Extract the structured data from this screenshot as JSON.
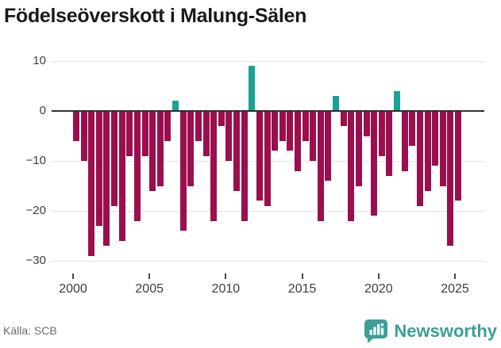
{
  "title": "Födelseöverskott i Malung-Sälen",
  "source": "Källa: SCB",
  "logo": {
    "text": "Newsworthy",
    "icon": "bar-chart-speech-bubble"
  },
  "colors": {
    "negative_bar": "#9b0f4e",
    "positive_bar": "#18a395",
    "gridline": "#e2e2e2",
    "zero_line": "#2e2e2e",
    "title_text": "#1a1a1a",
    "axis_text": "#3d3d3d",
    "source_text": "#6b6b6b",
    "logo_teal": "#3aa097"
  },
  "chart_data": {
    "type": "bar",
    "title": "Födelseöverskott i Malung-Sälen",
    "xlabel": "",
    "ylabel": "",
    "grid": true,
    "legend": false,
    "ylim": [
      -30,
      10
    ],
    "y_ticks": [
      10,
      0,
      -10,
      -20,
      -30
    ],
    "y_tick_labels": [
      "10",
      "0",
      "−10",
      "−20",
      "−30"
    ],
    "x_tick_years": [
      2000,
      2005,
      2010,
      2015,
      2020,
      2025
    ],
    "x_tick_labels": [
      "2000",
      "2005",
      "2010",
      "2015",
      "2020",
      "2025"
    ],
    "periods": [
      "2000 H1",
      "2000 H2",
      "2001 H1",
      "2001 H2",
      "2002 H1",
      "2002 H2",
      "2003 H1",
      "2003 H2",
      "2004 H1",
      "2004 H2",
      "2005 H1",
      "2005 H2",
      "2006 H1",
      "2006 H2",
      "2007 H1",
      "2007 H2",
      "2008 H1",
      "2008 H2",
      "2009 H1",
      "2009 H2",
      "2010 H1",
      "2010 H2",
      "2011 H1",
      "2011 H2",
      "2012 H1",
      "2012 H2",
      "2013 H1",
      "2013 H2",
      "2014 H1",
      "2014 H2",
      "2015 H1",
      "2015 H2",
      "2016 H1",
      "2016 H2",
      "2017 H1",
      "2017 H2",
      "2018 H1",
      "2018 H2",
      "2019 H1",
      "2019 H2",
      "2020 H1",
      "2020 H2",
      "2021 H1",
      "2021 H2",
      "2022 H1",
      "2022 H2",
      "2023 H1",
      "2023 H2",
      "2024 H1",
      "2024 H2",
      "2025 H1"
    ],
    "values": [
      -6,
      -10,
      -29,
      -23,
      -27,
      -19,
      -26,
      -9,
      -22,
      -9,
      -16,
      -15,
      -6,
      2,
      -24,
      -15,
      -6,
      -9,
      -22,
      -3,
      -10,
      -16,
      -22,
      9,
      -18,
      -19,
      -8,
      -6,
      -8,
      -12,
      -6,
      -10,
      -22,
      -14,
      3,
      -3,
      -22,
      -15,
      -5,
      -21,
      -9,
      -13,
      4,
      -12,
      -7,
      -19,
      -16,
      -11,
      -15,
      -27,
      -18
    ]
  }
}
